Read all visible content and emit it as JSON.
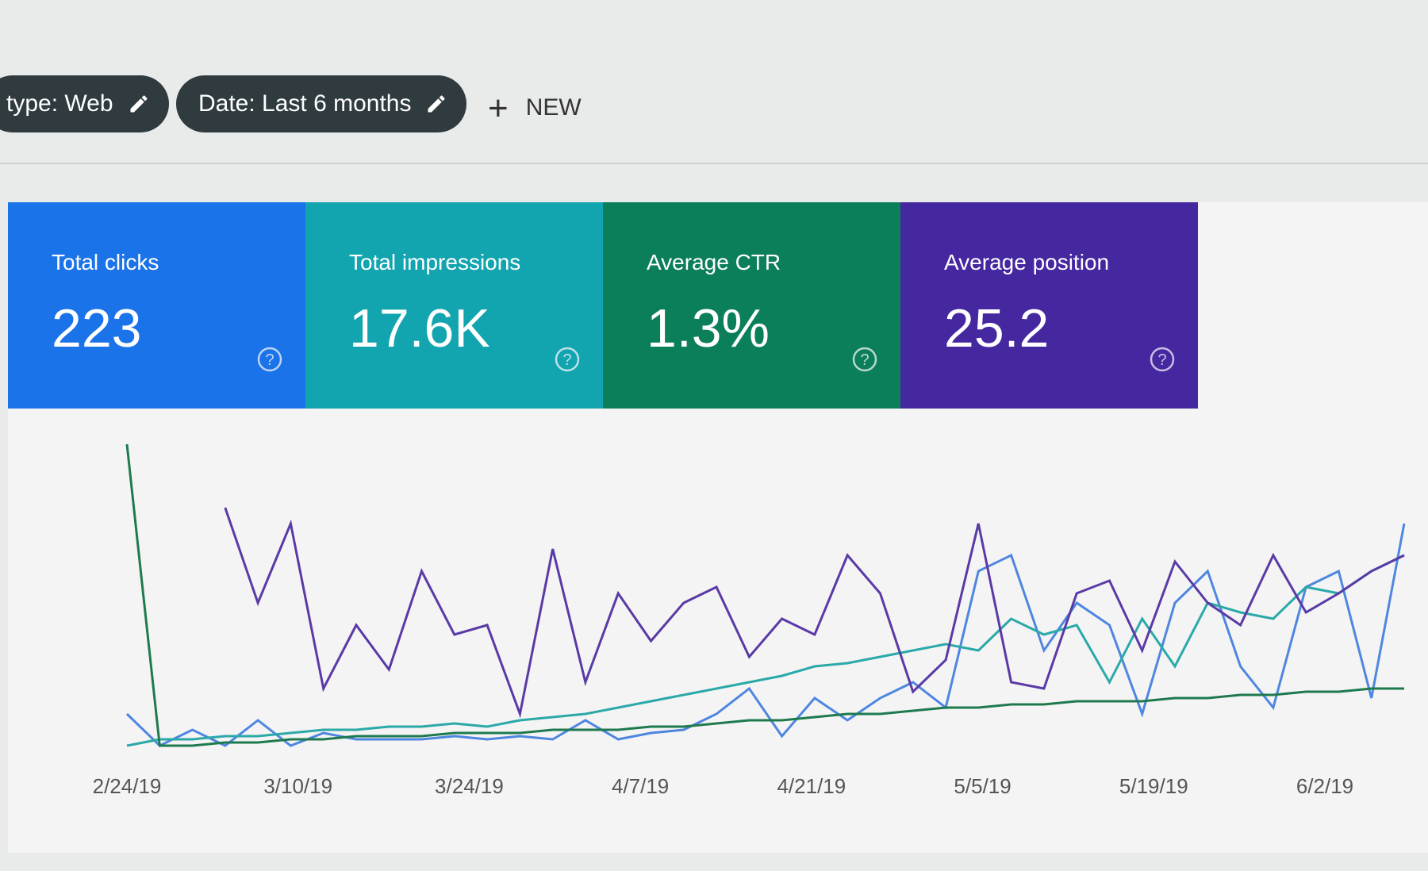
{
  "filters": [
    "type: Web",
    "Date: Last 6 months"
  ],
  "new_button": "NEW",
  "metrics": [
    {
      "label": "Total clicks",
      "value": "223",
      "color": "#1a73e8",
      "line_color": "#4f86e0",
      "series": [
        10,
        0,
        5,
        0,
        8,
        0,
        4,
        2,
        2,
        2,
        3,
        2,
        3,
        2,
        8,
        2,
        4,
        5,
        10,
        18,
        3,
        15,
        8,
        15,
        20,
        12,
        55,
        60,
        30,
        45,
        38,
        10,
        45,
        55,
        25,
        12,
        50,
        55,
        15,
        70
      ]
    },
    {
      "label": "Total impressions",
      "value": "17.6K",
      "color": "#12a4af",
      "line_color": "#2aa9a8",
      "series": [
        0,
        2,
        2,
        3,
        3,
        4,
        5,
        5,
        6,
        6,
        7,
        6,
        8,
        9,
        10,
        12,
        14,
        16,
        18,
        20,
        22,
        25,
        26,
        28,
        30,
        32,
        30,
        40,
        35,
        38,
        20,
        40,
        25,
        45,
        42,
        40,
        50,
        48,
        55,
        60
      ]
    },
    {
      "label": "Average CTR",
      "value": "1.3%",
      "color": "#0b7e5a",
      "line_color": "#1e7a4e",
      "series": [
        95,
        0,
        0,
        1,
        1,
        2,
        2,
        3,
        3,
        3,
        4,
        4,
        4,
        5,
        5,
        5,
        6,
        6,
        7,
        8,
        8,
        9,
        10,
        10,
        11,
        12,
        12,
        13,
        13,
        14,
        14,
        14,
        15,
        15,
        16,
        16,
        17,
        17,
        18,
        18
      ]
    },
    {
      "label": "Average position",
      "value": "25.2",
      "color": "#4527a0",
      "line_color": "#5a3aa6",
      "series": [
        null,
        null,
        null,
        75,
        45,
        70,
        18,
        38,
        24,
        55,
        35,
        38,
        10,
        62,
        20,
        48,
        33,
        45,
        50,
        28,
        40,
        35,
        60,
        48,
        17,
        27,
        70,
        20,
        18,
        48,
        52,
        30,
        58,
        45,
        38,
        60,
        42,
        48,
        55,
        60
      ]
    }
  ],
  "x_tick_labels": [
    "2/24/19",
    "3/10/19",
    "3/24/19",
    "4/7/19",
    "4/21/19",
    "5/5/19",
    "5/19/19",
    "6/2/19"
  ]
}
